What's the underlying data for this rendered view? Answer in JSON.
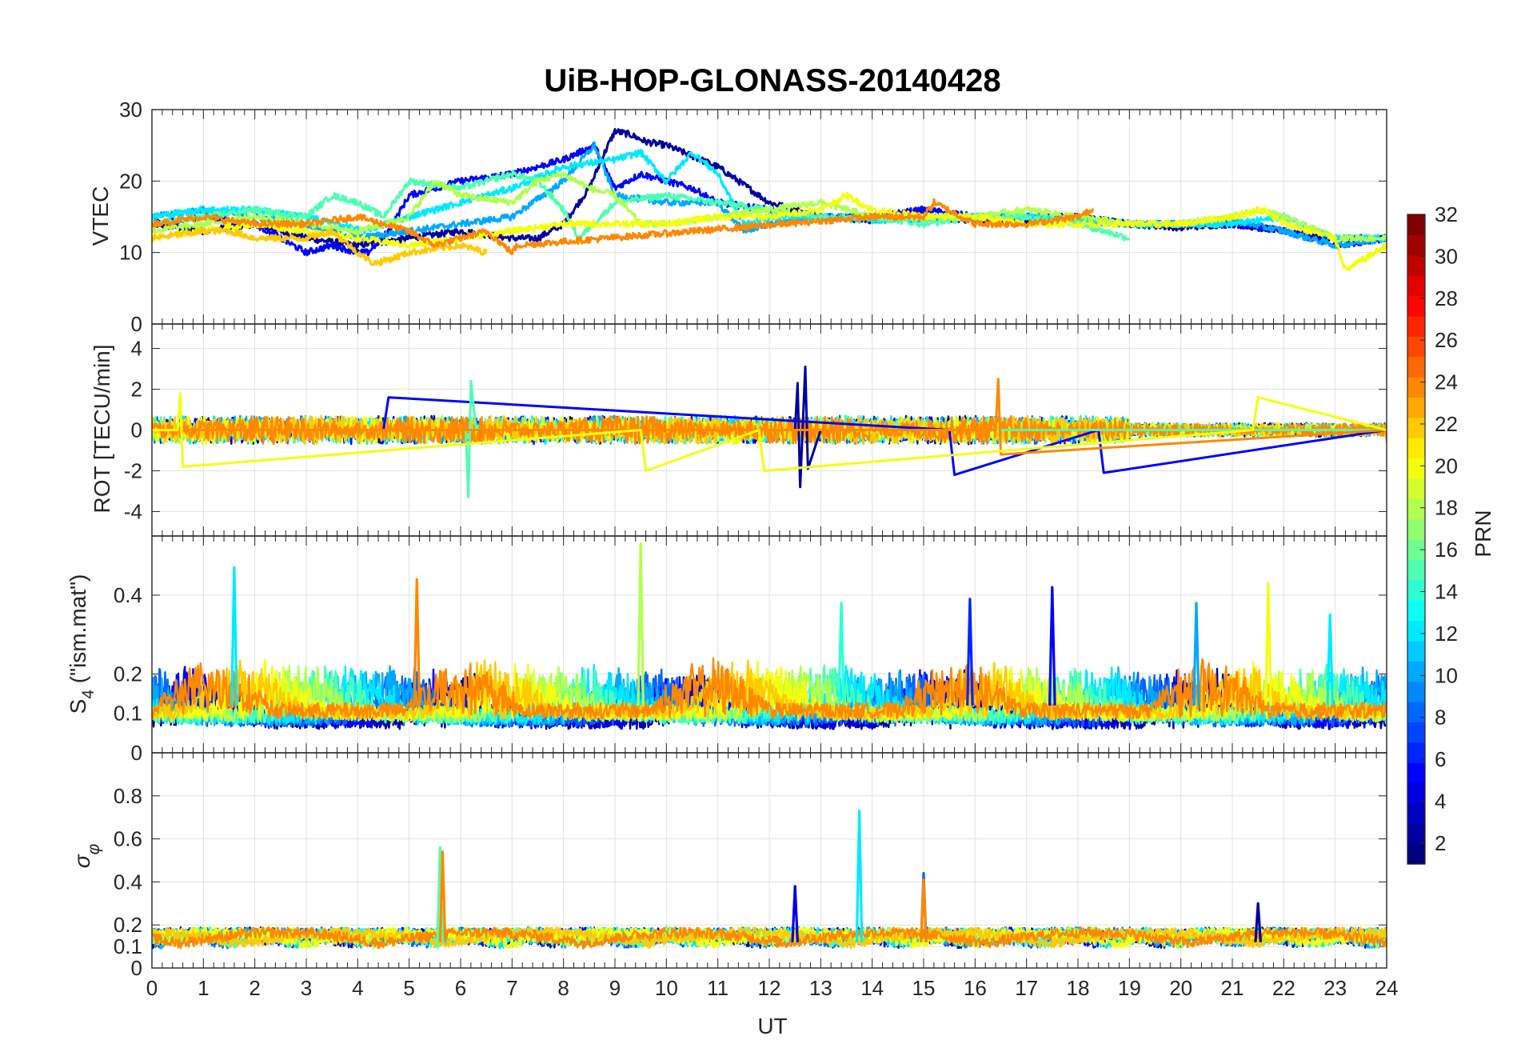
{
  "chart_data": {
    "type": "line",
    "title": "UiB-HOP-GLONASS-20140428",
    "xlabel": "UT",
    "x_tick_labels": [
      "0",
      "1",
      "2",
      "3",
      "4",
      "5",
      "6",
      "7",
      "8",
      "9",
      "10",
      "11",
      "12",
      "13",
      "14",
      "15",
      "16",
      "17",
      "18",
      "19",
      "20",
      "21",
      "22",
      "23",
      "24"
    ],
    "xlim": [
      0,
      24
    ],
    "colorbar": {
      "label": "PRN",
      "colormap": "jet",
      "clim": [
        1,
        32
      ],
      "tick_labels": [
        "2",
        "4",
        "6",
        "8",
        "10",
        "12",
        "14",
        "16",
        "18",
        "20",
        "22",
        "24",
        "26",
        "28",
        "30",
        "32"
      ]
    },
    "panels": [
      {
        "id": "vtec",
        "ylabel": "VTEC",
        "ylim": [
          0,
          30
        ],
        "y_tick_labels": [
          "0",
          "10",
          "20",
          "30"
        ],
        "series": [
          {
            "prn": 2,
            "x": [
              0,
              1,
              2,
              3,
              4,
              5,
              6,
              7,
              7.5,
              8,
              8.5,
              8.8,
              9,
              9.3,
              9.6,
              10,
              11,
              12,
              13,
              14,
              15,
              16,
              17,
              18,
              19,
              20,
              21,
              22,
              23,
              24
            ],
            "y": [
              14,
              13,
              14,
              12,
              11,
              12,
              13,
              12,
              12,
              14,
              19,
              24,
              27,
              26.5,
              25.5,
              25,
              22,
              17,
              15,
              14.5,
              15,
              14.5,
              14.5,
              15,
              14,
              13.5,
              14,
              13,
              12,
              12
            ]
          },
          {
            "prn": 5,
            "x": [
              0,
              1,
              2,
              3,
              3.5,
              4,
              4.2,
              4.6,
              5,
              6,
              7,
              8,
              8.6,
              9,
              9.5,
              10,
              10.5,
              11,
              12,
              13,
              14,
              15,
              16,
              17,
              18,
              19,
              20,
              21,
              22,
              23,
              24
            ],
            "y": [
              14,
              15,
              14,
              10,
              11,
              10,
              10,
              13,
              18,
              20,
              21,
              23,
              25,
              19,
              21,
              20,
              19,
              17,
              16,
              15,
              15,
              16,
              15,
              15,
              15,
              14,
              14,
              14,
              13,
              11,
              12
            ]
          },
          {
            "prn": 10,
            "x": [
              0,
              1,
              2,
              3,
              4,
              5,
              6,
              7,
              8,
              8.6,
              9,
              10,
              11,
              11.5,
              12,
              13,
              14,
              15,
              16,
              17,
              18,
              19,
              20,
              21,
              22,
              23,
              24
            ],
            "y": [
              15,
              16,
              15,
              14,
              12,
              13,
              14,
              15,
              20,
              25,
              18,
              17,
              17,
              13,
              14,
              15,
              15,
              14.5,
              15,
              15,
              14.5,
              14,
              14,
              14.5,
              13,
              11,
              12
            ]
          },
          {
            "prn": 12,
            "x": [
              0,
              1,
              2,
              3,
              3.6,
              4.1,
              5,
              5.5,
              6,
              7,
              8,
              9,
              9.5,
              10,
              10.5,
              11,
              11.5,
              12,
              13,
              14,
              15,
              16,
              17,
              18,
              19,
              20,
              21,
              22,
              23,
              24
            ],
            "y": [
              15,
              16,
              16,
              15,
              14,
              13,
              15,
              16,
              17,
              19,
              22,
              23,
              24,
              20,
              24,
              21,
              14,
              15,
              15,
              14.5,
              15,
              15,
              15,
              14.5,
              14,
              14,
              14,
              15,
              12,
              12
            ]
          },
          {
            "prn": 15,
            "x": [
              0,
              1,
              2,
              3,
              3.5,
              4,
              4.5,
              5,
              6,
              7,
              7.5,
              8,
              8.3,
              9,
              10,
              11,
              12,
              13,
              14,
              15,
              16,
              17,
              18,
              18.5,
              19
            ],
            "y": [
              14,
              15,
              16,
              15,
              18,
              17,
              15,
              20,
              19,
              21,
              20,
              16,
              12,
              17,
              18,
              17,
              16,
              15,
              15,
              14,
              15,
              15,
              14,
              13,
              12
            ]
          },
          {
            "prn": 18,
            "x": [
              0,
              1,
              2,
              3,
              4,
              5,
              5.5,
              6,
              7,
              7.5,
              8,
              8.5,
              9,
              9.5,
              10,
              11,
              12,
              13,
              14,
              15,
              16,
              17,
              18,
              19,
              20,
              21,
              21.5,
              22,
              23,
              24
            ],
            "y": [
              13,
              14,
              15,
              14,
              13,
              15,
              20,
              18,
              17,
              20,
              21,
              19,
              18,
              14,
              14,
              15,
              16,
              17,
              15,
              15,
              15,
              16,
              15,
              14,
              14,
              15,
              16,
              15,
              12,
              12
            ]
          },
          {
            "prn": 20,
            "x": [
              0,
              1,
              2,
              3,
              4,
              5,
              6,
              7,
              8,
              9,
              10,
              11,
              12,
              13,
              13.5,
              14,
              15,
              16,
              17,
              18,
              19,
              20,
              21,
              21.6,
              22,
              23,
              23.2,
              24
            ],
            "y": [
              12,
              13,
              14,
              13,
              12,
              11,
              12,
              13,
              14,
              14,
              14,
              15,
              15,
              16,
              18,
              16,
              15,
              15,
              14,
              14,
              14,
              14,
              15,
              16,
              14,
              12,
              7.5,
              11
            ]
          },
          {
            "prn": 22,
            "x": [
              0,
              1,
              1.5,
              2,
              3,
              3.5,
              4,
              4.3,
              4.6,
              5,
              6,
              6.5
            ],
            "y": [
              12,
              13,
              13,
              12,
              12,
              13,
              10,
              8.5,
              9,
              10,
              11,
              10
            ]
          },
          {
            "prn": 24,
            "x": [
              0,
              1,
              2,
              3,
              4,
              4.5,
              5,
              5.5,
              6,
              6.5,
              7,
              7.1,
              14,
              15,
              15.2,
              16,
              17,
              18,
              18.3
            ],
            "y": [
              14,
              15,
              14,
              14,
              15,
              14,
              13,
              11,
              12,
              13,
              10,
              11,
              15,
              15,
              17,
              14,
              14,
              15,
              16
            ]
          }
        ]
      },
      {
        "id": "rot",
        "ylabel": "ROT [TECU/min]",
        "ylim": [
          -5.2,
          5.2
        ],
        "y_tick_labels": [
          "-4",
          "-2",
          "0",
          "2",
          "4"
        ],
        "series": [
          {
            "prn": 2,
            "x": [
              0,
              12.5,
              12.55,
              12.6,
              12.7,
              12.75,
              13,
              24
            ],
            "y": [
              0,
              0,
              2.3,
              -2.8,
              3.1,
              -1.9,
              0,
              0
            ]
          },
          {
            "prn": 5,
            "x": [
              0,
              4.5,
              4.6,
              15.5,
              15.6,
              18.4,
              18.5,
              24
            ],
            "y": [
              0,
              0,
              1.6,
              0,
              -2.2,
              0,
              -2.1,
              0
            ]
          },
          {
            "prn": 15,
            "x": [
              0,
              6.1,
              6.15,
              6.2,
              6.3,
              24
            ],
            "y": [
              0,
              0,
              -3.3,
              2.4,
              0,
              0
            ]
          },
          {
            "prn": 24,
            "x": [
              0,
              16.4,
              16.45,
              16.5,
              24
            ],
            "y": [
              0,
              0,
              2.5,
              -1.2,
              0
            ]
          },
          {
            "prn": 20,
            "x": [
              0,
              0.5,
              0.55,
              0.6,
              9.5,
              9.6,
              11.8,
              11.9,
              21.4,
              21.5,
              24
            ],
            "y": [
              0,
              0,
              1.8,
              -1.8,
              0,
              -2,
              0,
              -2,
              0,
              1.6,
              0
            ]
          }
        ]
      },
      {
        "id": "s4",
        "ylabel": "S4 (\"ism.mat\")",
        "ylabel_main": "S",
        "ylabel_sub": "4",
        "ylabel_rest": " (\"ism.mat\")",
        "ylim": [
          0,
          0.55
        ],
        "y_tick_labels": [
          "0",
          "0.1",
          "0.2",
          "0.4"
        ],
        "y_tick_values": [
          0,
          0.1,
          0.2,
          0.4
        ],
        "peaks": [
          {
            "prn": 12,
            "x": 1.6,
            "y": 0.47
          },
          {
            "prn": 24,
            "x": 5.15,
            "y": 0.44
          },
          {
            "prn": 18,
            "x": 9.5,
            "y": 0.53
          },
          {
            "prn": 5,
            "x": 17.5,
            "y": 0.42
          },
          {
            "prn": 20,
            "x": 21.7,
            "y": 0.43
          },
          {
            "prn": 6,
            "x": 15.9,
            "y": 0.39
          },
          {
            "prn": 10,
            "x": 20.3,
            "y": 0.38
          },
          {
            "prn": 12,
            "x": 22.9,
            "y": 0.35
          },
          {
            "prn": 14,
            "x": 13.4,
            "y": 0.38
          }
        ]
      },
      {
        "id": "sigma_phi",
        "ylabel": "σφ",
        "ylabel_main": "σ",
        "ylabel_sub": "φ",
        "ylim": [
          0,
          1
        ],
        "y_tick_labels": [
          "0",
          "0.1",
          "0.2",
          "0.4",
          "0.6",
          "0.8"
        ],
        "y_tick_values": [
          0,
          0.1,
          0.2,
          0.4,
          0.6,
          0.8
        ],
        "peaks": [
          {
            "prn": 15,
            "x": 5.6,
            "y": 0.56
          },
          {
            "prn": 24,
            "x": 5.65,
            "y": 0.54
          },
          {
            "prn": 12,
            "x": 13.75,
            "y": 0.73
          },
          {
            "prn": 8,
            "x": 15.0,
            "y": 0.44
          },
          {
            "prn": 24,
            "x": 15.0,
            "y": 0.41
          },
          {
            "prn": 4,
            "x": 12.5,
            "y": 0.38
          },
          {
            "prn": 2,
            "x": 21.5,
            "y": 0.3
          }
        ]
      }
    ]
  }
}
